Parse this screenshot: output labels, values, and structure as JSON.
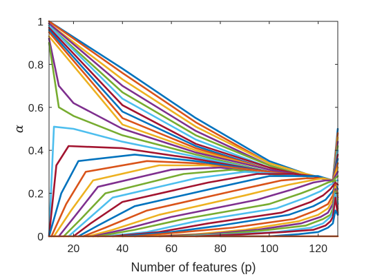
{
  "chart_data": {
    "type": "line",
    "title": "",
    "xlabel": "Number of features (p)",
    "ylabel": "α",
    "xlim": [
      10,
      128
    ],
    "ylim": [
      0,
      1
    ],
    "xticks": [
      20,
      40,
      60,
      80,
      100,
      120
    ],
    "yticks": [
      0,
      0.2,
      0.4,
      0.6,
      0.8,
      1
    ],
    "ytick_labels": [
      "0",
      "0.2",
      "0.4",
      "0.6",
      "0.8",
      "1"
    ],
    "grid": false,
    "legend": "none",
    "palette": [
      "#0072BD",
      "#D95319",
      "#EDB120",
      "#7E2F8E",
      "#77AC30",
      "#4DBEEE",
      "#A2142F"
    ],
    "series": [
      {
        "x": [
          10,
          40,
          70,
          100,
          115,
          126,
          128
        ],
        "y": [
          1.0,
          0.78,
          0.55,
          0.35,
          0.29,
          0.26,
          0.5
        ]
      },
      {
        "x": [
          10,
          40,
          70,
          100,
          115,
          126,
          128
        ],
        "y": [
          1.0,
          0.76,
          0.53,
          0.34,
          0.29,
          0.26,
          0.48
        ]
      },
      {
        "x": [
          10,
          40,
          70,
          100,
          115,
          126,
          128
        ],
        "y": [
          0.99,
          0.73,
          0.51,
          0.34,
          0.29,
          0.26,
          0.46
        ]
      },
      {
        "x": [
          10,
          40,
          70,
          100,
          115,
          126,
          128
        ],
        "y": [
          0.99,
          0.7,
          0.49,
          0.33,
          0.28,
          0.26,
          0.44
        ]
      },
      {
        "x": [
          10,
          40,
          70,
          100,
          115,
          126,
          128
        ],
        "y": [
          0.98,
          0.67,
          0.47,
          0.33,
          0.28,
          0.26,
          0.42
        ]
      },
      {
        "x": [
          10,
          40,
          70,
          100,
          115,
          126,
          128
        ],
        "y": [
          0.98,
          0.64,
          0.45,
          0.32,
          0.28,
          0.26,
          0.4
        ]
      },
      {
        "x": [
          10,
          40,
          70,
          100,
          115,
          126,
          128
        ],
        "y": [
          0.97,
          0.61,
          0.43,
          0.32,
          0.28,
          0.26,
          0.38
        ]
      },
      {
        "x": [
          10,
          40,
          70,
          100,
          115,
          126,
          128
        ],
        "y": [
          0.96,
          0.58,
          0.42,
          0.31,
          0.28,
          0.26,
          0.36
        ]
      },
      {
        "x": [
          10,
          40,
          70,
          100,
          115,
          126,
          128
        ],
        "y": [
          0.95,
          0.55,
          0.41,
          0.31,
          0.28,
          0.26,
          0.34
        ]
      },
      {
        "x": [
          10,
          40,
          70,
          100,
          115,
          126,
          128
        ],
        "y": [
          0.93,
          0.52,
          0.4,
          0.31,
          0.28,
          0.26,
          0.32
        ]
      },
      {
        "x": [
          10,
          14,
          20,
          40,
          70,
          100,
          115,
          126,
          128
        ],
        "y": [
          0.92,
          0.7,
          0.62,
          0.5,
          0.39,
          0.31,
          0.28,
          0.26,
          0.3
        ]
      },
      {
        "x": [
          10,
          14,
          20,
          40,
          70,
          100,
          115,
          126,
          128
        ],
        "y": [
          0.9,
          0.6,
          0.56,
          0.47,
          0.38,
          0.3,
          0.28,
          0.26,
          0.28
        ]
      },
      {
        "x": [
          10,
          12,
          20,
          40,
          70,
          100,
          115,
          126,
          128
        ],
        "y": [
          0.0,
          0.51,
          0.5,
          0.44,
          0.37,
          0.3,
          0.28,
          0.26,
          0.26
        ]
      },
      {
        "x": [
          10,
          13,
          18,
          40,
          70,
          100,
          115,
          126,
          128
        ],
        "y": [
          0.0,
          0.33,
          0.42,
          0.41,
          0.36,
          0.3,
          0.28,
          0.26,
          0.24
        ]
      },
      {
        "x": [
          10,
          15,
          22,
          45,
          70,
          100,
          115,
          126,
          128
        ],
        "y": [
          0.0,
          0.2,
          0.35,
          0.38,
          0.35,
          0.3,
          0.28,
          0.26,
          0.22
        ]
      },
      {
        "x": [
          11,
          17,
          25,
          50,
          70,
          100,
          115,
          126,
          128
        ],
        "y": [
          0.0,
          0.15,
          0.3,
          0.35,
          0.34,
          0.3,
          0.28,
          0.26,
          0.2
        ]
      },
      {
        "x": [
          12,
          19,
          28,
          55,
          75,
          100,
          115,
          126,
          128
        ],
        "y": [
          0.0,
          0.12,
          0.26,
          0.33,
          0.33,
          0.29,
          0.28,
          0.26,
          0.19
        ]
      },
      {
        "x": [
          14,
          21,
          30,
          60,
          80,
          100,
          115,
          126,
          128
        ],
        "y": [
          0.0,
          0.1,
          0.23,
          0.31,
          0.32,
          0.29,
          0.28,
          0.26,
          0.18
        ]
      },
      {
        "x": [
          16,
          23,
          33,
          65,
          85,
          100,
          115,
          126,
          128
        ],
        "y": [
          0.0,
          0.08,
          0.2,
          0.29,
          0.31,
          0.29,
          0.28,
          0.26,
          0.17
        ]
      },
      {
        "x": [
          18,
          25,
          36,
          70,
          90,
          105,
          115,
          126,
          128
        ],
        "y": [
          0.0,
          0.07,
          0.18,
          0.27,
          0.3,
          0.29,
          0.28,
          0.26,
          0.16
        ]
      },
      {
        "x": [
          20,
          27,
          40,
          75,
          95,
          110,
          118,
          126,
          128
        ],
        "y": [
          0.0,
          0.06,
          0.16,
          0.25,
          0.29,
          0.29,
          0.28,
          0.26,
          0.15
        ]
      },
      {
        "x": [
          22,
          30,
          45,
          80,
          100,
          112,
          120,
          126,
          128
        ],
        "y": [
          0.0,
          0.05,
          0.14,
          0.23,
          0.28,
          0.28,
          0.28,
          0.26,
          0.15
        ]
      },
      {
        "x": [
          24,
          33,
          50,
          85,
          105,
          115,
          121,
          126,
          128
        ],
        "y": [
          0.0,
          0.04,
          0.12,
          0.21,
          0.26,
          0.27,
          0.27,
          0.26,
          0.14
        ]
      },
      {
        "x": [
          26,
          36,
          55,
          90,
          108,
          117,
          122,
          126,
          128
        ],
        "y": [
          0.0,
          0.03,
          0.1,
          0.19,
          0.24,
          0.26,
          0.27,
          0.26,
          0.13
        ]
      },
      {
        "x": [
          28,
          40,
          60,
          95,
          110,
          118,
          123,
          126,
          128
        ],
        "y": [
          0.0,
          0.03,
          0.09,
          0.17,
          0.22,
          0.25,
          0.26,
          0.26,
          0.13
        ]
      },
      {
        "x": [
          30,
          45,
          65,
          100,
          113,
          120,
          124,
          127,
          128
        ],
        "y": [
          0.0,
          0.03,
          0.08,
          0.15,
          0.2,
          0.23,
          0.25,
          0.26,
          0.12
        ]
      },
      {
        "x": [
          33,
          50,
          70,
          103,
          115,
          121,
          125,
          127,
          128
        ],
        "y": [
          0.0,
          0.02,
          0.07,
          0.13,
          0.18,
          0.21,
          0.24,
          0.25,
          0.12
        ]
      },
      {
        "x": [
          36,
          55,
          75,
          105,
          117,
          122,
          125,
          127,
          128
        ],
        "y": [
          0.0,
          0.02,
          0.06,
          0.11,
          0.16,
          0.19,
          0.22,
          0.25,
          0.11
        ]
      },
      {
        "x": [
          40,
          60,
          80,
          108,
          118,
          123,
          126,
          127,
          128
        ],
        "y": [
          0.0,
          0.02,
          0.05,
          0.1,
          0.14,
          0.17,
          0.21,
          0.24,
          0.11
        ]
      },
      {
        "x": [
          45,
          65,
          85,
          110,
          119,
          124,
          126,
          127,
          128
        ],
        "y": [
          0.0,
          0.02,
          0.04,
          0.08,
          0.12,
          0.15,
          0.19,
          0.24,
          0.11
        ]
      },
      {
        "x": [
          50,
          70,
          90,
          112,
          120,
          124,
          126,
          127,
          128
        ],
        "y": [
          0.0,
          0.01,
          0.03,
          0.07,
          0.1,
          0.13,
          0.17,
          0.23,
          0.1
        ]
      },
      {
        "x": [
          55,
          75,
          95,
          113,
          121,
          124,
          126,
          127,
          128
        ],
        "y": [
          0.0,
          0.01,
          0.03,
          0.06,
          0.09,
          0.11,
          0.15,
          0.22,
          0.1
        ]
      },
      {
        "x": [
          60,
          80,
          100,
          115,
          122,
          125,
          126,
          127,
          128
        ],
        "y": [
          0.0,
          0.01,
          0.03,
          0.05,
          0.08,
          0.1,
          0.13,
          0.21,
          0.1
        ]
      },
      {
        "x": [
          65,
          85,
          103,
          117,
          122,
          125,
          126,
          127,
          128
        ],
        "y": [
          0.0,
          0.01,
          0.02,
          0.04,
          0.06,
          0.09,
          0.11,
          0.2,
          0.1
        ]
      },
      {
        "x": [
          70,
          90,
          106,
          118,
          123,
          125,
          126,
          127,
          128
        ],
        "y": [
          0.0,
          0.01,
          0.02,
          0.03,
          0.05,
          0.07,
          0.09,
          0.18,
          0.1
        ]
      },
      {
        "x": [
          80,
          100,
          112,
          120,
          124,
          126,
          127,
          128
        ],
        "y": [
          0.0,
          0.0,
          0.01,
          0.02,
          0.04,
          0.06,
          0.12,
          0.1
        ]
      },
      {
        "x": [
          10,
          128
        ],
        "y": [
          0.0,
          0.0
        ]
      }
    ]
  }
}
